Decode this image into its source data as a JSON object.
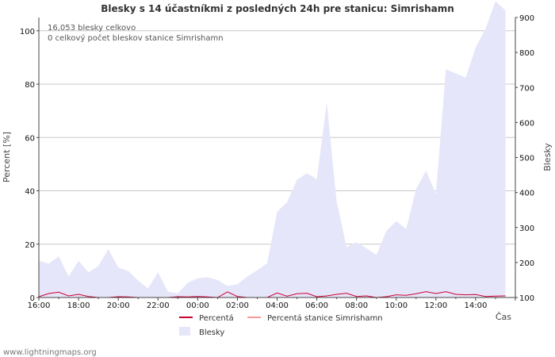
{
  "chart_data": {
    "type": "area",
    "title": "Blesky s 14 účastníkmi z posledných 24h pre stanicu: Simrishamn",
    "ylabel_left": "Percent   [%]",
    "ylabel_right": "Blesky",
    "xlabel": "Čas",
    "x_ticks": [
      "16:00",
      "18:00",
      "20:00",
      "22:00",
      "00:00",
      "02:00",
      "04:00",
      "06:00",
      "08:00",
      "10:00",
      "12:00",
      "14:00"
    ],
    "y_left_ticks": [
      "0",
      "20",
      "40",
      "60",
      "80",
      "100"
    ],
    "y_right_ticks": [
      "100",
      "200",
      "300",
      "400",
      "500",
      "600",
      "700",
      "800",
      "900"
    ],
    "ylim_left": [
      0,
      105
    ],
    "ylim_right": [
      100,
      900
    ],
    "annotations": [
      "16,053 blesky celkovo",
      "0 celkový počet bleskov stanice Simrishamn"
    ],
    "series": [
      {
        "name": "Blesky",
        "axis": "right",
        "color": "#e6e6fa",
        "values": [
          205,
          197,
          218,
          160,
          205,
          172,
          190,
          238,
          186,
          176,
          148,
          126,
          172,
          117,
          112,
          142,
          155,
          158,
          150,
          133,
          138,
          160,
          178,
          198,
          345,
          372,
          436,
          455,
          438,
          658,
          375,
          244,
          258,
          240,
          222,
          290,
          318,
          296,
          410,
          462,
          396,
          752,
          740,
          728,
          814,
          868,
          947,
          920
        ]
      },
      {
        "name": "Percentá",
        "axis": "left",
        "color": "#cc0033",
        "values": [
          0.3,
          1.5,
          2.0,
          0.6,
          1.2,
          0.4,
          0,
          0,
          0.3,
          0.2,
          0,
          0,
          0,
          0,
          0.3,
          0.2,
          0.4,
          0.2,
          0,
          2.1,
          0.4,
          0,
          0,
          0,
          1.7,
          0.5,
          1.4,
          1.6,
          0.3,
          0.6,
          1.2,
          1.6,
          0.4,
          0.6,
          0,
          0.3,
          1.0,
          0.8,
          1.4,
          2.2,
          1.5,
          2.2,
          1.2,
          1.0,
          1.1,
          0.4,
          0.5,
          0.6
        ]
      },
      {
        "name": "Percentá stanice Simrishamn",
        "axis": "left",
        "color": "#ff9999",
        "values": [
          0,
          0,
          0,
          0,
          0,
          0,
          0,
          0,
          0,
          0,
          0,
          0,
          0,
          0,
          0,
          0,
          0,
          0,
          0,
          0,
          0,
          0,
          0,
          0,
          0,
          0,
          0,
          0,
          0,
          0,
          0,
          0,
          0,
          0,
          0,
          0,
          0,
          0,
          0,
          0,
          0,
          0,
          0,
          0,
          0,
          0,
          0,
          0
        ]
      }
    ],
    "legend": [
      "Percentá",
      "Percentá stanice Simrishamn",
      "Blesky"
    ]
  },
  "footer": {
    "credit": "www.lightningmaps.org"
  }
}
